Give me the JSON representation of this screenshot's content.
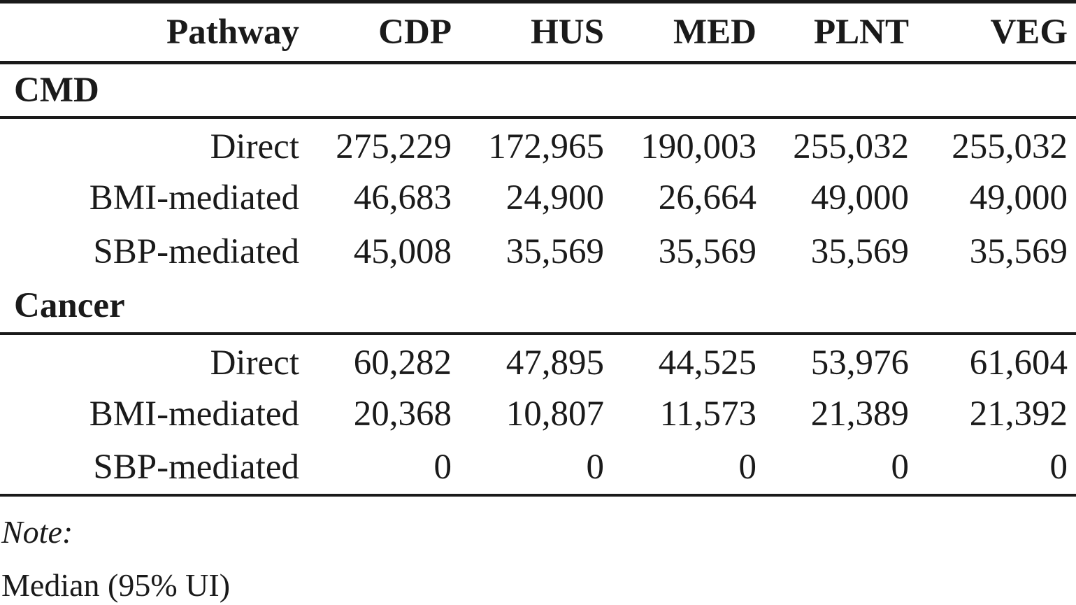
{
  "table": {
    "headers": [
      "Pathway",
      "CDP",
      "HUS",
      "MED",
      "PLNT",
      "VEG"
    ],
    "groups": [
      {
        "label": "CMD",
        "rows": [
          {
            "label": "Direct",
            "values": [
              "275,229",
              "172,965",
              "190,003",
              "255,032",
              "255,032"
            ]
          },
          {
            "label": "BMI-mediated",
            "values": [
              "46,683",
              "24,900",
              "26,664",
              "49,000",
              "49,000"
            ]
          },
          {
            "label": "SBP-mediated",
            "values": [
              "45,008",
              "35,569",
              "35,569",
              "35,569",
              "35,569"
            ]
          }
        ]
      },
      {
        "label": "Cancer",
        "rows": [
          {
            "label": "Direct",
            "values": [
              "60,282",
              "47,895",
              "44,525",
              "53,976",
              "61,604"
            ]
          },
          {
            "label": "BMI-mediated",
            "values": [
              "20,368",
              "10,807",
              "11,573",
              "21,389",
              "21,392"
            ]
          },
          {
            "label": "SBP-mediated",
            "values": [
              "0",
              "0",
              "0",
              "0",
              "0"
            ]
          }
        ]
      }
    ]
  },
  "note": {
    "label": "Note:",
    "text": "Median (95% UI)"
  }
}
